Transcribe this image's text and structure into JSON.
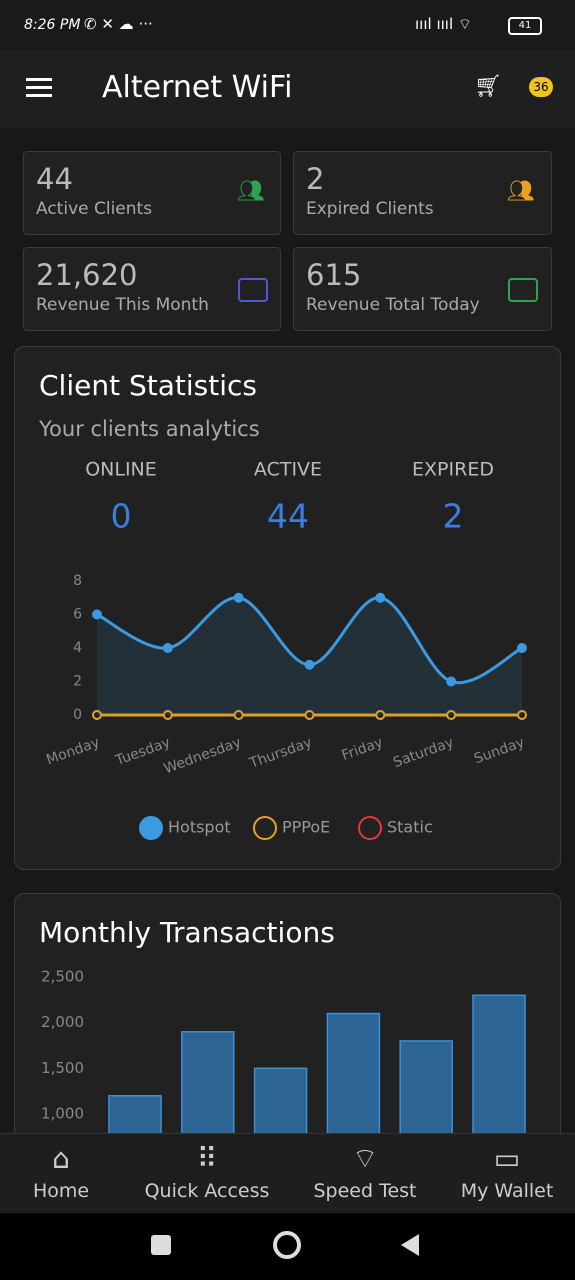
{
  "status_bar": {
    "time": "8:26 PM",
    "battery": "41"
  },
  "app_bar": {
    "title": "Alternet WiFi",
    "badge": "36"
  },
  "cards": [
    {
      "value": "44",
      "label": "Active Clients"
    },
    {
      "value": "2",
      "label": "Expired Clients"
    },
    {
      "value": "21,620",
      "label": "Revenue This Month"
    },
    {
      "value": "615",
      "label": "Revenue Total Today"
    }
  ],
  "client_statistics": {
    "title": "Client Statistics",
    "subtitle": "Your clients analytics",
    "stats": [
      {
        "label": "ONLINE",
        "value": "0"
      },
      {
        "label": "ACTIVE",
        "value": "44"
      },
      {
        "label": "EXPIRED",
        "value": "2"
      }
    ],
    "chart": {
      "type": "line",
      "categories": [
        "Monday",
        "Tuesday",
        "Wednesday",
        "Thursday",
        "Friday",
        "Saturday",
        "Sunday"
      ],
      "series": [
        {
          "name": "Hotspot",
          "color": "#3b9ae1",
          "values": [
            6,
            4,
            7,
            3,
            7,
            2,
            4
          ]
        },
        {
          "name": "PPPoE",
          "color": "#e8a020",
          "values": [
            0,
            0,
            0,
            0,
            0,
            0,
            0
          ]
        },
        {
          "name": "Static",
          "color": "#e0393e",
          "values": [
            0,
            0,
            0,
            0,
            0,
            0,
            0
          ]
        }
      ],
      "ylim": [
        0,
        8
      ],
      "yticks": [
        0,
        2,
        4,
        6,
        8
      ],
      "legend": "bottom"
    }
  },
  "monthly_transactions": {
    "title": "Monthly Transactions",
    "chart": {
      "type": "bar",
      "values": [
        1200,
        1900,
        1500,
        2100,
        1800,
        2300
      ],
      "color": "#2c6494",
      "ylim": [
        0,
        2500
      ],
      "yticks": [
        {
          "value": 1000,
          "label": "1,000"
        },
        {
          "value": 1500,
          "label": "1,500"
        },
        {
          "value": 2000,
          "label": "2,000"
        },
        {
          "value": 2500,
          "label": "2,500"
        }
      ]
    }
  },
  "bottom_nav": [
    "Home",
    "Quick Access",
    "Speed Test",
    "My Wallet"
  ]
}
